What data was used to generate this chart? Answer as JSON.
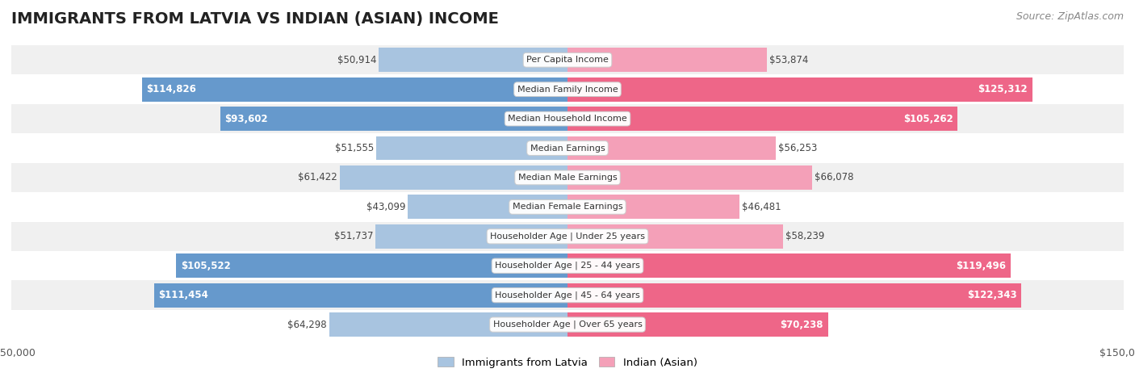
{
  "title": "IMMIGRANTS FROM LATVIA VS INDIAN (ASIAN) INCOME",
  "source": "Source: ZipAtlas.com",
  "categories": [
    "Per Capita Income",
    "Median Family Income",
    "Median Household Income",
    "Median Earnings",
    "Median Male Earnings",
    "Median Female Earnings",
    "Householder Age | Under 25 years",
    "Householder Age | 25 - 44 years",
    "Householder Age | 45 - 64 years",
    "Householder Age | Over 65 years"
  ],
  "latvia_values": [
    50914,
    114826,
    93602,
    51555,
    61422,
    43099,
    51737,
    105522,
    111454,
    64298
  ],
  "indian_values": [
    53874,
    125312,
    105262,
    56253,
    66078,
    46481,
    58239,
    119496,
    122343,
    70238
  ],
  "latvia_color_light": "#a8c4e0",
  "latvia_color_dark": "#6699cc",
  "indian_color_light": "#f4a0b8",
  "indian_color_dark": "#ee6688",
  "bar_height": 0.82,
  "max_value": 150000,
  "bg_row_even": "#f0f0f0",
  "bg_row_odd": "#ffffff",
  "legend_latvia": "Immigrants from Latvia",
  "legend_indian": "Indian (Asian)",
  "latvia_threshold": 70000,
  "indian_threshold": 70000,
  "title_fontsize": 14,
  "label_fontsize": 8.5,
  "cat_fontsize": 8,
  "source_fontsize": 9
}
